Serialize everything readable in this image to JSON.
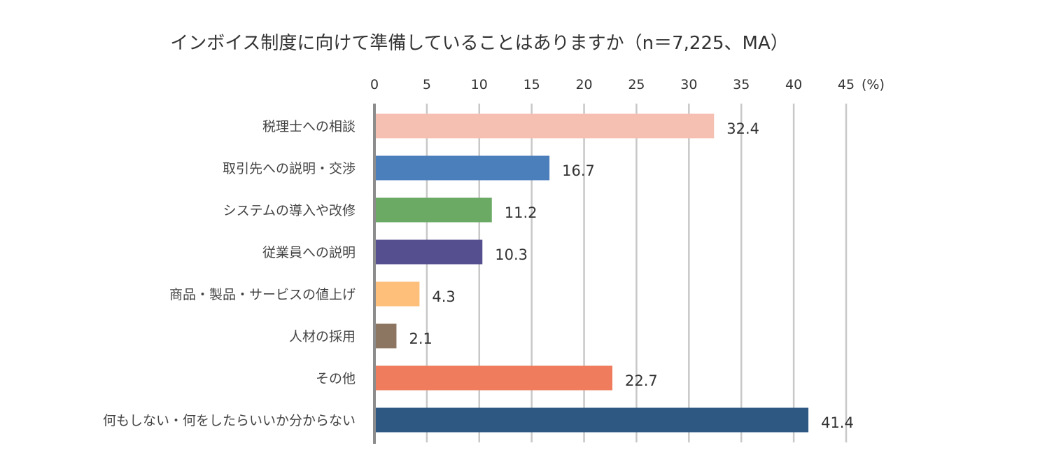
{
  "chart_data": {
    "type": "bar",
    "orientation": "horizontal",
    "title": "インボイス制度に向けて準備していることはありますか（n＝7,225、MA）",
    "unit_label": "(%)",
    "xlim": [
      0,
      45
    ],
    "ticks": [
      0,
      5,
      10,
      15,
      20,
      25,
      30,
      35,
      40,
      45
    ],
    "tick_labels": [
      "0",
      "5",
      "10",
      "15",
      "20",
      "25",
      "30",
      "35",
      "40",
      "45"
    ],
    "grid": true,
    "categories": [
      "税理士への相談",
      "取引先への説明・交渉",
      "システムの導入や改修",
      "従業員への説明",
      "商品・製品・サービスの値上げ",
      "人材の採用",
      "その他",
      "何もしない・何をしたらいいか分からない"
    ],
    "values": [
      32.4,
      16.7,
      11.2,
      10.3,
      4.3,
      2.1,
      22.7,
      41.4
    ],
    "value_labels": [
      "32.4",
      "16.7",
      "11.2",
      "10.3",
      "4.3",
      "2.1",
      "22.7",
      "41.4"
    ],
    "colors": [
      "#f5c0b2",
      "#4a7fbc",
      "#6aaa64",
      "#554e8f",
      "#fdbf7a",
      "#8c7561",
      "#ef7c5c",
      "#2e5781"
    ]
  }
}
